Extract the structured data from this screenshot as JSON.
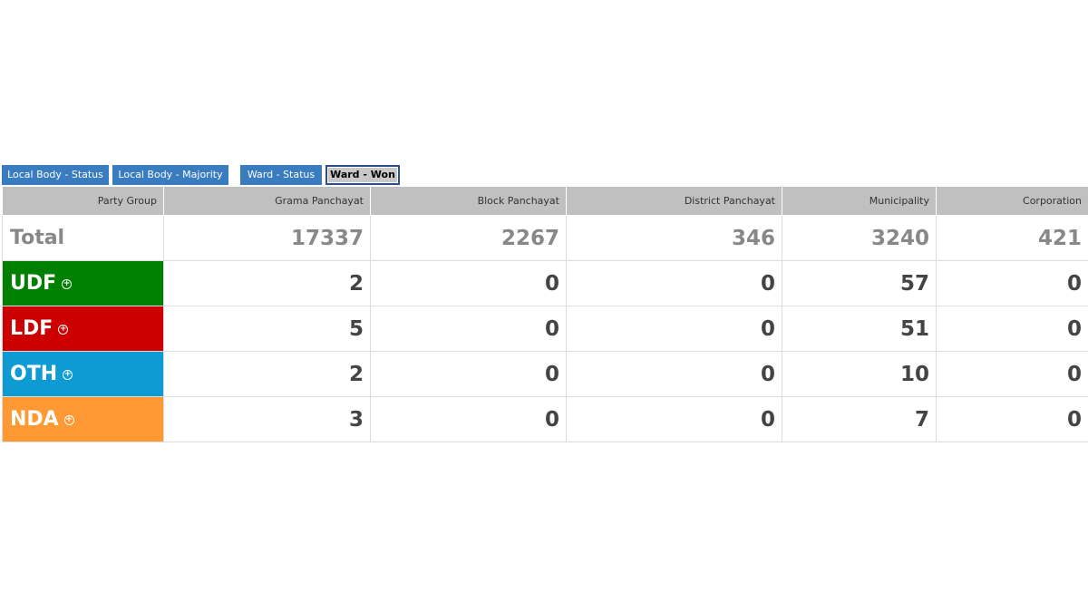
{
  "tabs": [
    "Local Body - Status",
    "Local Body - Majority",
    "Ward - Status",
    "Ward - Won"
  ],
  "table": {
    "headers": [
      "Party Group",
      "Grama Panchayat",
      "Block Panchayat",
      "District Panchayat",
      "Municipality",
      "Corporation"
    ],
    "rows": [
      {
        "label": "Total",
        "values": [
          17337,
          2267,
          346,
          3240,
          421
        ]
      },
      {
        "label": "UDF",
        "color": "#008000",
        "values": [
          2,
          0,
          0,
          57,
          0
        ]
      },
      {
        "label": "LDF",
        "color": "#cc0000",
        "values": [
          5,
          0,
          0,
          51,
          0
        ]
      },
      {
        "label": "OTH",
        "color": "#0e9bd3",
        "values": [
          2,
          0,
          0,
          10,
          0
        ]
      },
      {
        "label": "NDA",
        "color": "#ff9933",
        "values": [
          3,
          0,
          0,
          7,
          0
        ]
      }
    ]
  }
}
